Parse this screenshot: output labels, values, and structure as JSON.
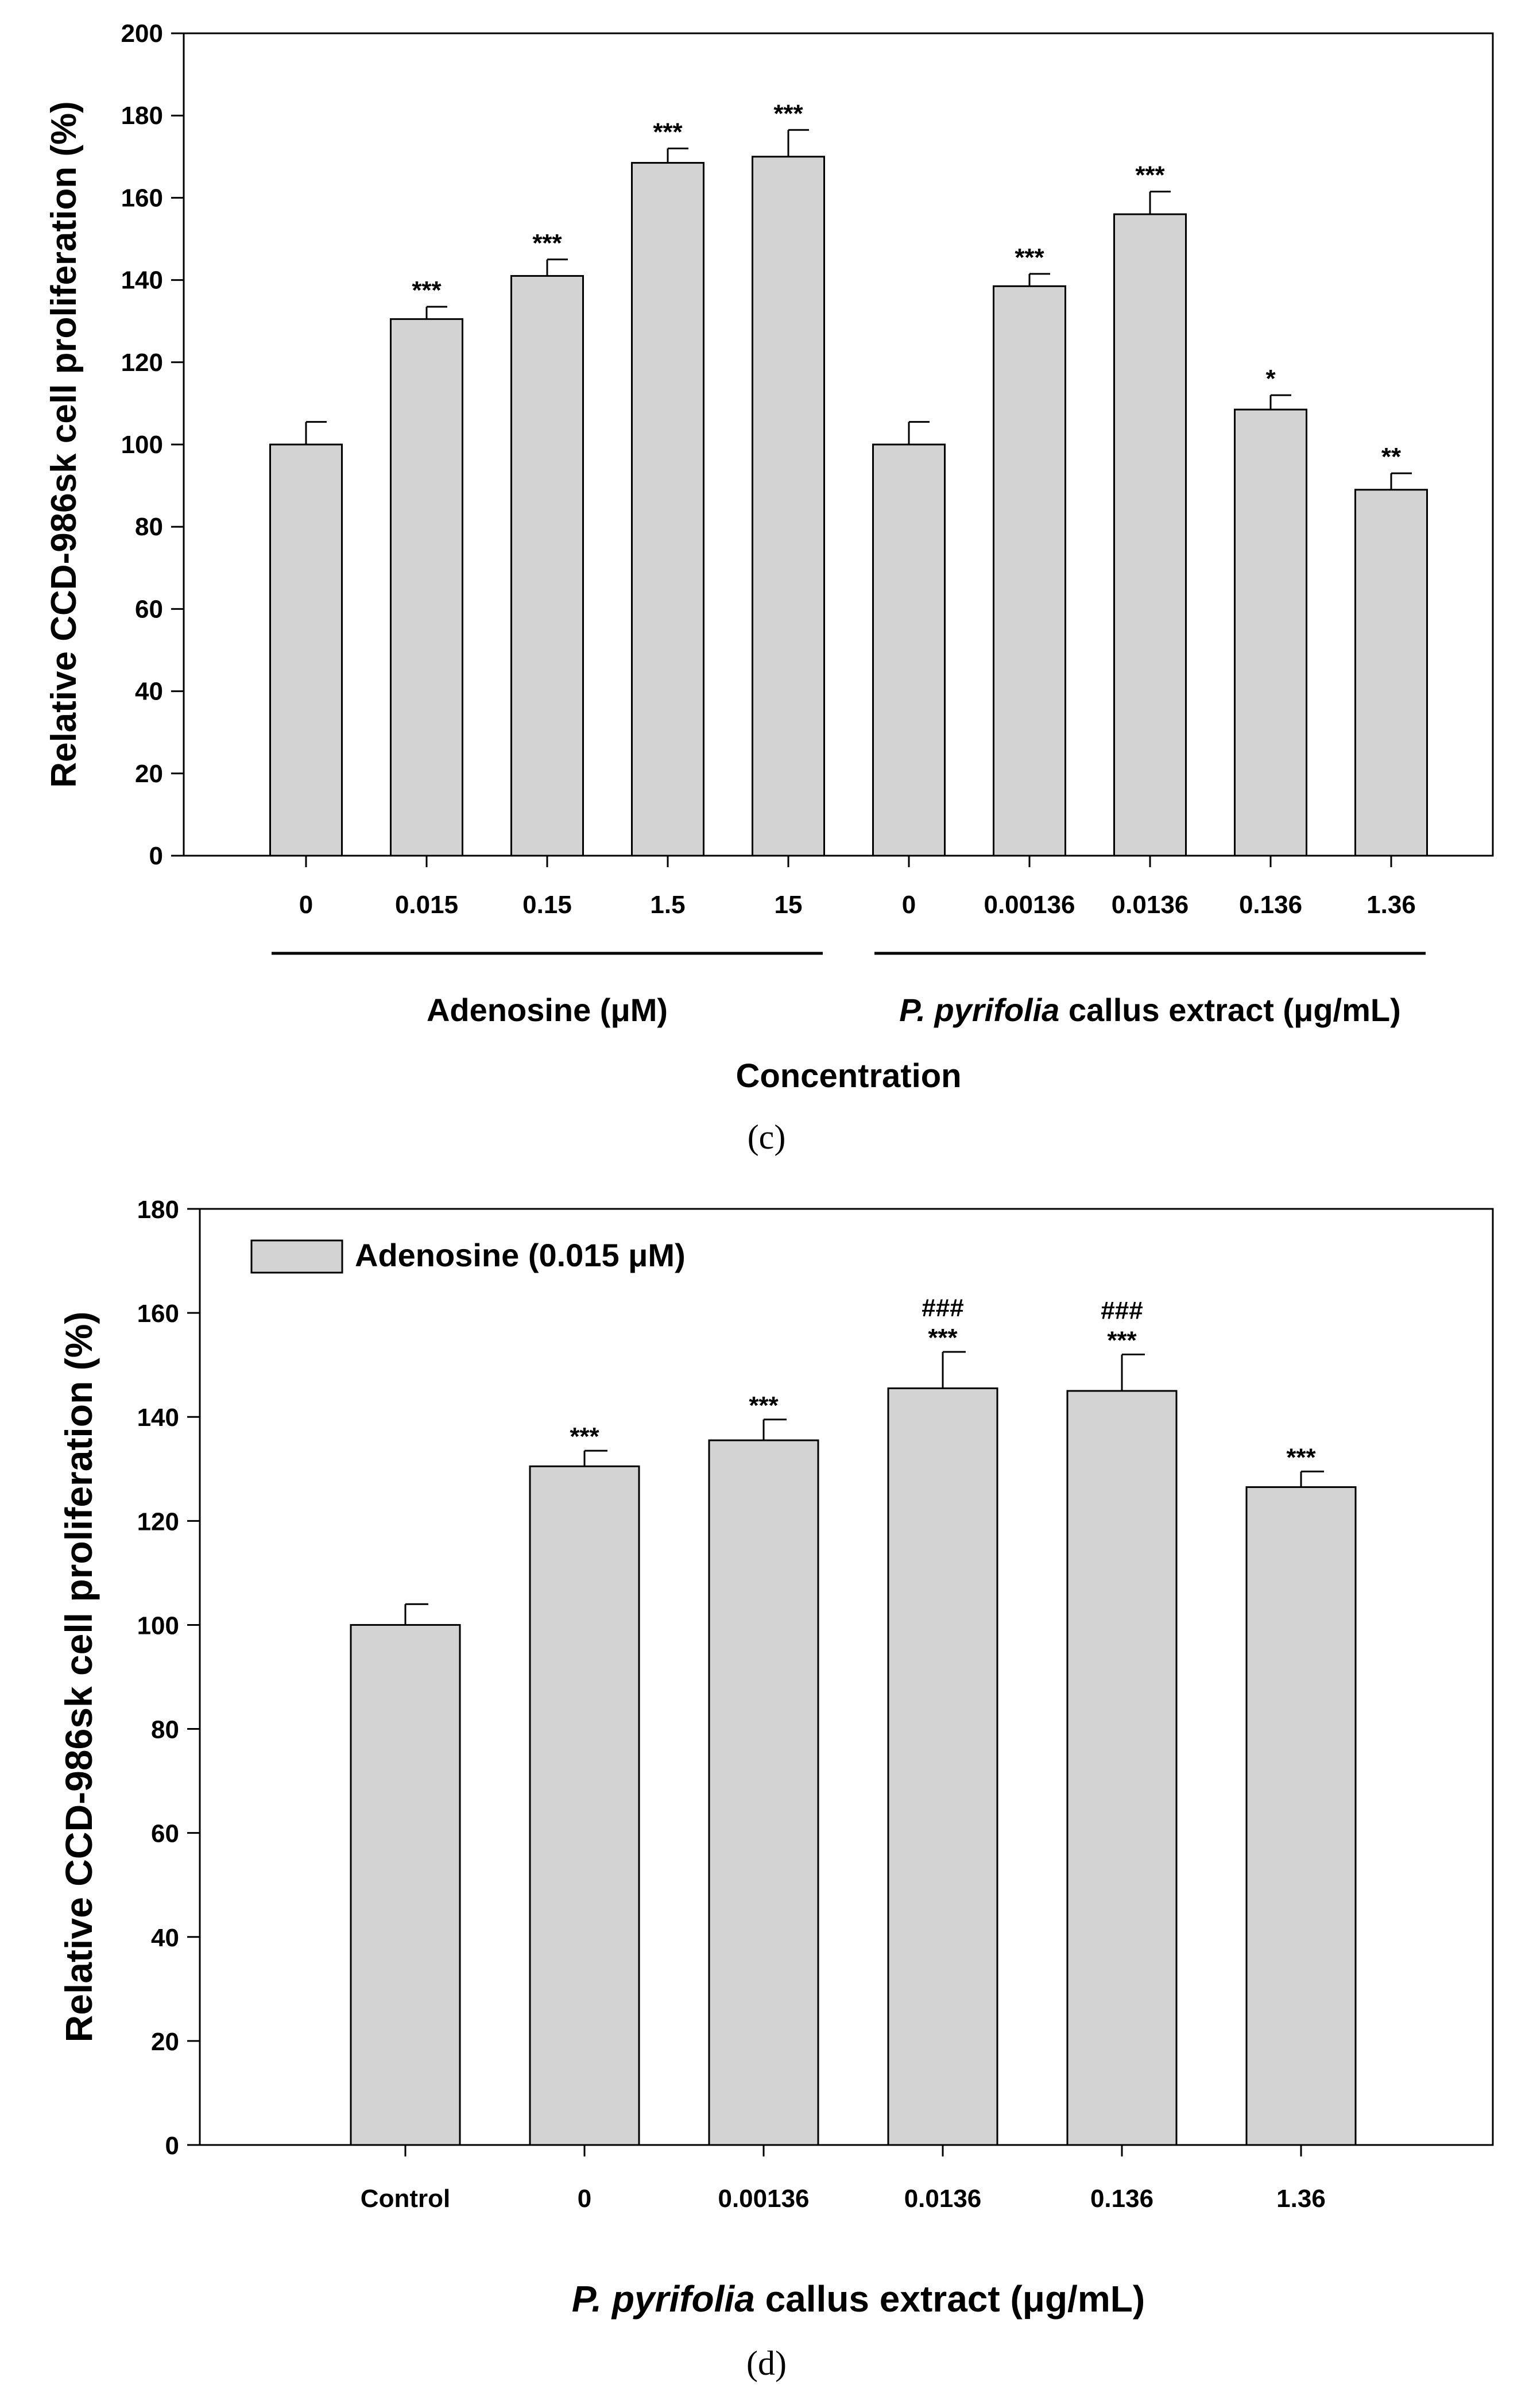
{
  "bar_color": "#d3d3d3",
  "chart_data": [
    {
      "type": "bar",
      "panel_label": "(c)",
      "ylabel": "Relative CCD-986sk cell proliferation (%)",
      "xlabel": "Concentration",
      "ylim": [
        0,
        200
      ],
      "yticks": [
        "0",
        "20",
        "40",
        "60",
        "80",
        "100",
        "120",
        "140",
        "160",
        "180",
        "200"
      ],
      "groups": [
        {
          "label": "Adenosine (μM)",
          "first": 0,
          "last": 4
        },
        {
          "label_italic": "P. pyrifolia",
          "label_rest": " callus extract (μg/mL)",
          "first": 5,
          "last": 9
        }
      ],
      "categories": [
        "0",
        "0.015",
        "0.15",
        "1.5",
        "15",
        "0",
        "0.00136",
        "0.0136",
        "0.136",
        "1.36"
      ],
      "values": [
        100,
        130.5,
        141,
        168.5,
        170,
        100,
        138.5,
        156,
        108.5,
        89
      ],
      "errors": [
        5.5,
        3,
        4,
        3.5,
        6.5,
        5.5,
        3,
        5.5,
        3.5,
        4
      ],
      "significance": [
        "",
        "***",
        "***",
        "***",
        "***",
        "",
        "***",
        "***",
        "*",
        "**"
      ]
    },
    {
      "type": "bar",
      "panel_label": "(d)",
      "ylabel": "Relative CCD-986sk cell proliferation (%)",
      "xlabel_italic": "P. pyrifolia",
      "xlabel_rest": " callus extract (μg/mL)",
      "ylim": [
        0,
        180
      ],
      "yticks": [
        "0",
        "20",
        "40",
        "60",
        "80",
        "100",
        "120",
        "140",
        "160",
        "180"
      ],
      "legend": "Adenosine (0.015 μM)",
      "categories": [
        "Control",
        "0",
        "0.00136",
        "0.0136",
        "0.136",
        "1.36"
      ],
      "values": [
        100,
        130.5,
        135.5,
        145.5,
        145,
        126.5
      ],
      "errors": [
        4,
        3,
        4,
        7,
        7,
        3
      ],
      "significance": [
        "",
        "***",
        "***",
        "***",
        "***",
        "***"
      ],
      "significance2": [
        "",
        "",
        "",
        "###",
        "###",
        ""
      ]
    }
  ]
}
